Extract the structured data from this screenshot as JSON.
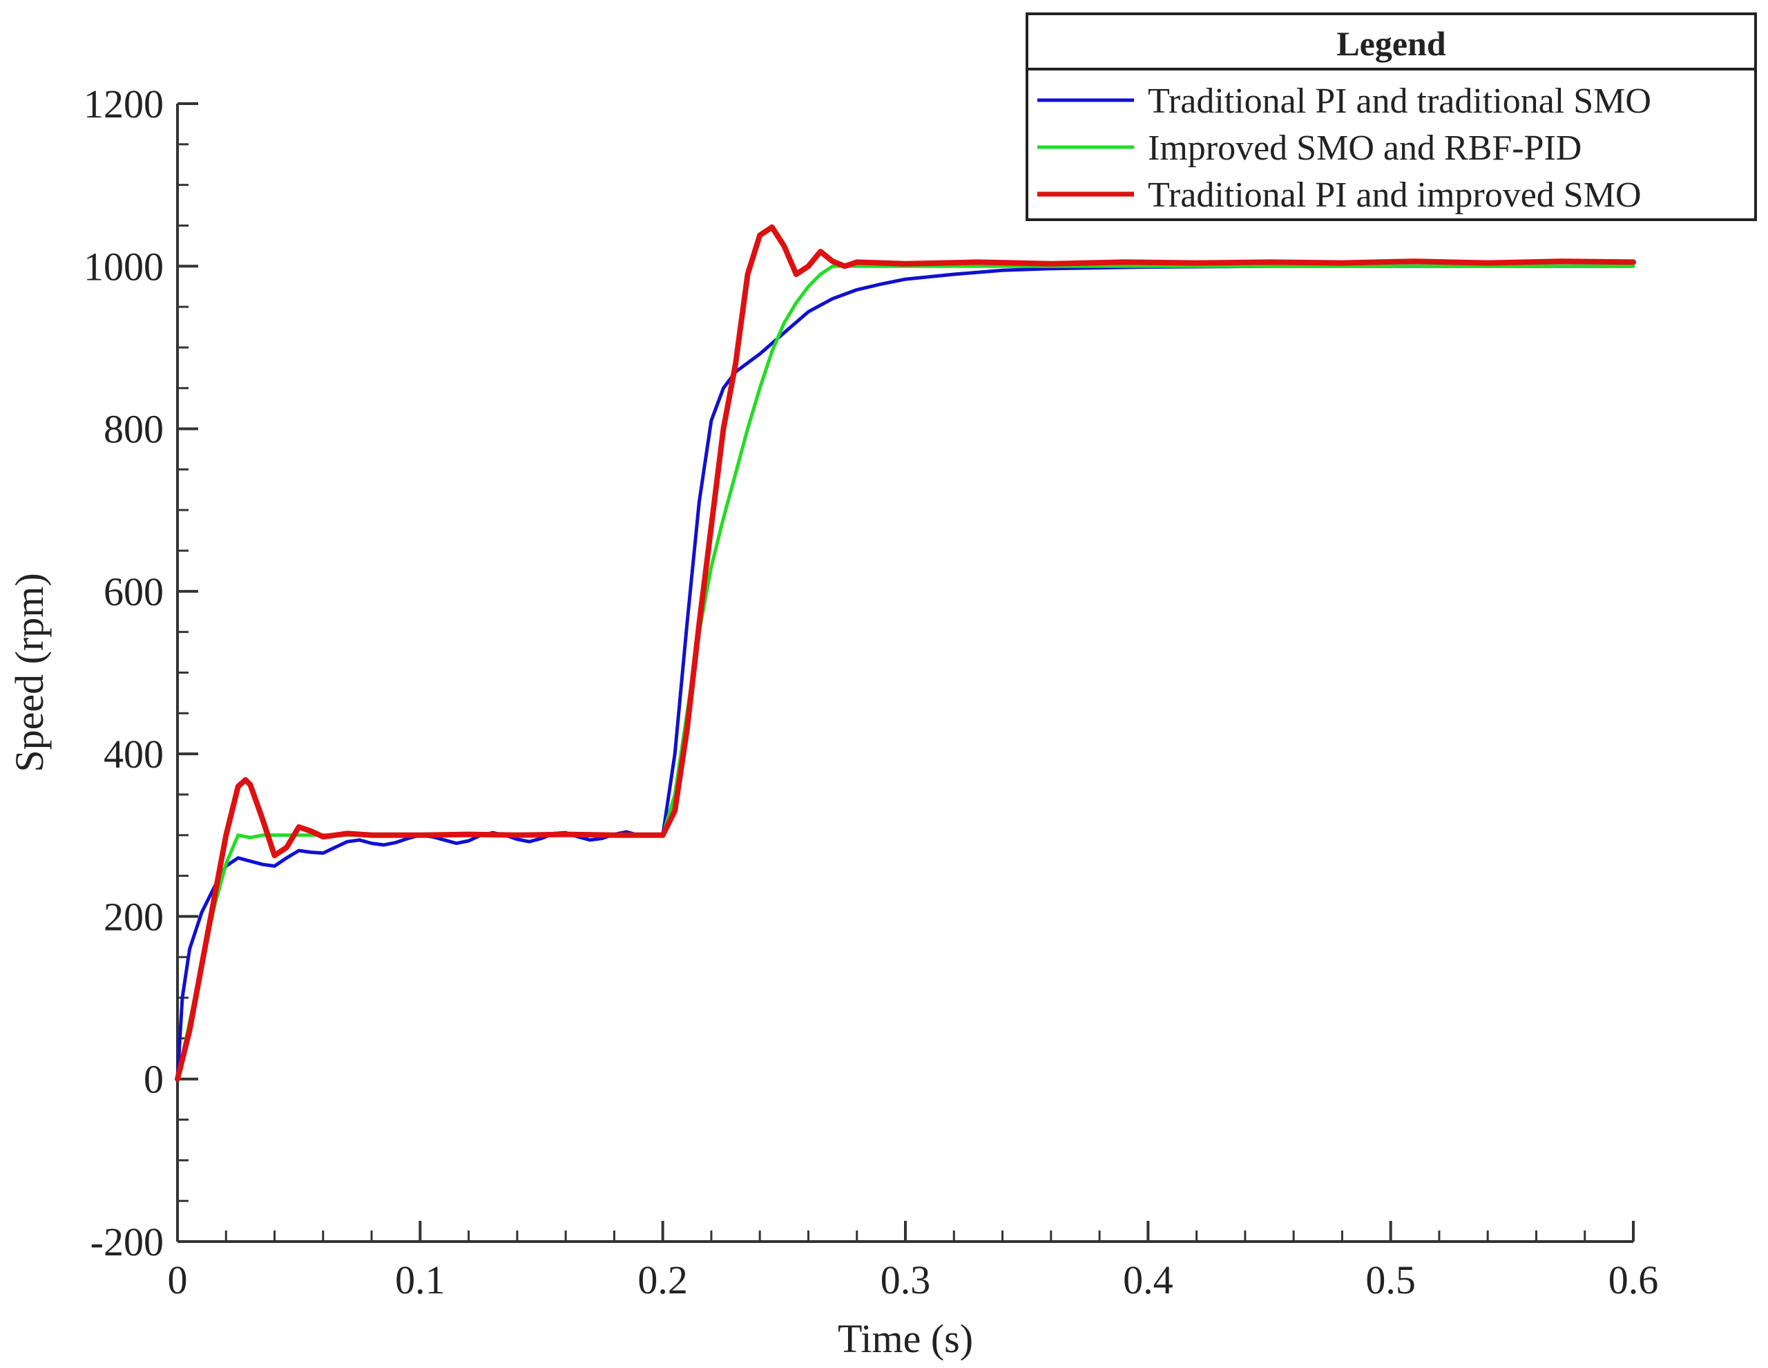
{
  "chart_data": {
    "type": "line",
    "title": "",
    "xlabel": "Time (s)",
    "ylabel": "Speed (rpm)",
    "xlim": [
      0,
      0.6
    ],
    "ylim": [
      -200,
      1200
    ],
    "x_ticks": [
      "0",
      "0.1",
      "0.2",
      "0.3",
      "0.4",
      "0.5",
      "0.6"
    ],
    "x_tick_values": [
      0,
      0.1,
      0.2,
      0.3,
      0.4,
      0.5,
      0.6
    ],
    "y_ticks": [
      "-200",
      "0",
      "200",
      "400",
      "600",
      "800",
      "1000",
      "1200"
    ],
    "y_tick_values": [
      -200,
      0,
      200,
      400,
      600,
      800,
      1000,
      1200
    ],
    "grid": false,
    "legend": {
      "title": "Legend",
      "placement": "top-right"
    },
    "series": [
      {
        "name": "Traditional PI  and traditional SMO",
        "color": "#1010d0",
        "points": [
          [
            0,
            0
          ],
          [
            0.002,
            100
          ],
          [
            0.005,
            160
          ],
          [
            0.01,
            205
          ],
          [
            0.015,
            235
          ],
          [
            0.02,
            262
          ],
          [
            0.025,
            272
          ],
          [
            0.03,
            268
          ],
          [
            0.035,
            264
          ],
          [
            0.04,
            262
          ],
          [
            0.045,
            272
          ],
          [
            0.05,
            281
          ],
          [
            0.055,
            279
          ],
          [
            0.06,
            278
          ],
          [
            0.065,
            285
          ],
          [
            0.07,
            292
          ],
          [
            0.075,
            294
          ],
          [
            0.08,
            290
          ],
          [
            0.085,
            288
          ],
          [
            0.09,
            291
          ],
          [
            0.095,
            296
          ],
          [
            0.1,
            300
          ],
          [
            0.105,
            298
          ],
          [
            0.11,
            294
          ],
          [
            0.115,
            290
          ],
          [
            0.12,
            293
          ],
          [
            0.125,
            300
          ],
          [
            0.13,
            303
          ],
          [
            0.135,
            300
          ],
          [
            0.14,
            295
          ],
          [
            0.145,
            292
          ],
          [
            0.15,
            296
          ],
          [
            0.155,
            302
          ],
          [
            0.16,
            303
          ],
          [
            0.165,
            298
          ],
          [
            0.17,
            294
          ],
          [
            0.175,
            296
          ],
          [
            0.18,
            301
          ],
          [
            0.185,
            304
          ],
          [
            0.19,
            300
          ],
          [
            0.195,
            300
          ],
          [
            0.2,
            300
          ],
          [
            0.205,
            400
          ],
          [
            0.21,
            560
          ],
          [
            0.215,
            710
          ],
          [
            0.22,
            810
          ],
          [
            0.225,
            850
          ],
          [
            0.23,
            870
          ],
          [
            0.24,
            892
          ],
          [
            0.25,
            918
          ],
          [
            0.26,
            944
          ],
          [
            0.27,
            960
          ],
          [
            0.28,
            971
          ],
          [
            0.29,
            978
          ],
          [
            0.3,
            984
          ],
          [
            0.32,
            990
          ],
          [
            0.34,
            995
          ],
          [
            0.36,
            997
          ],
          [
            0.38,
            998
          ],
          [
            0.4,
            999
          ],
          [
            0.45,
            1000
          ],
          [
            0.5,
            1000
          ],
          [
            0.55,
            1000
          ],
          [
            0.6,
            1000
          ]
        ]
      },
      {
        "name": "Improved SMO and RBF-PID",
        "color": "#22dd22",
        "points": [
          [
            0,
            0
          ],
          [
            0.005,
            70
          ],
          [
            0.01,
            140
          ],
          [
            0.015,
            210
          ],
          [
            0.02,
            265
          ],
          [
            0.025,
            300
          ],
          [
            0.03,
            297
          ],
          [
            0.035,
            300
          ],
          [
            0.04,
            300
          ],
          [
            0.05,
            300
          ],
          [
            0.1,
            300
          ],
          [
            0.15,
            300
          ],
          [
            0.2,
            300
          ],
          [
            0.205,
            350
          ],
          [
            0.21,
            450
          ],
          [
            0.215,
            550
          ],
          [
            0.22,
            630
          ],
          [
            0.225,
            690
          ],
          [
            0.23,
            745
          ],
          [
            0.235,
            800
          ],
          [
            0.24,
            850
          ],
          [
            0.245,
            895
          ],
          [
            0.25,
            930
          ],
          [
            0.255,
            955
          ],
          [
            0.26,
            975
          ],
          [
            0.265,
            990
          ],
          [
            0.27,
            1000
          ],
          [
            0.3,
            1000
          ],
          [
            0.35,
            1000
          ],
          [
            0.4,
            1000
          ],
          [
            0.45,
            1000
          ],
          [
            0.5,
            1000
          ],
          [
            0.55,
            1000
          ],
          [
            0.6,
            1000
          ]
        ]
      },
      {
        "name": "Traditional PI and improved SMO",
        "color": "#dd1111",
        "points": [
          [
            0,
            0
          ],
          [
            0.005,
            60
          ],
          [
            0.01,
            140
          ],
          [
            0.015,
            220
          ],
          [
            0.02,
            300
          ],
          [
            0.025,
            360
          ],
          [
            0.028,
            368
          ],
          [
            0.03,
            362
          ],
          [
            0.035,
            320
          ],
          [
            0.04,
            275
          ],
          [
            0.045,
            285
          ],
          [
            0.05,
            310
          ],
          [
            0.055,
            305
          ],
          [
            0.06,
            298
          ],
          [
            0.065,
            300
          ],
          [
            0.07,
            302
          ],
          [
            0.08,
            300
          ],
          [
            0.1,
            300
          ],
          [
            0.12,
            301
          ],
          [
            0.14,
            300
          ],
          [
            0.16,
            301
          ],
          [
            0.18,
            300
          ],
          [
            0.2,
            300
          ],
          [
            0.205,
            330
          ],
          [
            0.21,
            430
          ],
          [
            0.215,
            560
          ],
          [
            0.22,
            680
          ],
          [
            0.225,
            800
          ],
          [
            0.23,
            880
          ],
          [
            0.235,
            990
          ],
          [
            0.24,
            1038
          ],
          [
            0.245,
            1048
          ],
          [
            0.25,
            1025
          ],
          [
            0.255,
            990
          ],
          [
            0.26,
            1000
          ],
          [
            0.265,
            1018
          ],
          [
            0.27,
            1006
          ],
          [
            0.275,
            1000
          ],
          [
            0.28,
            1005
          ],
          [
            0.3,
            1003
          ],
          [
            0.33,
            1005
          ],
          [
            0.36,
            1003
          ],
          [
            0.39,
            1005
          ],
          [
            0.42,
            1004
          ],
          [
            0.45,
            1005
          ],
          [
            0.48,
            1004
          ],
          [
            0.51,
            1006
          ],
          [
            0.54,
            1004
          ],
          [
            0.57,
            1006
          ],
          [
            0.6,
            1005
          ]
        ]
      }
    ]
  }
}
